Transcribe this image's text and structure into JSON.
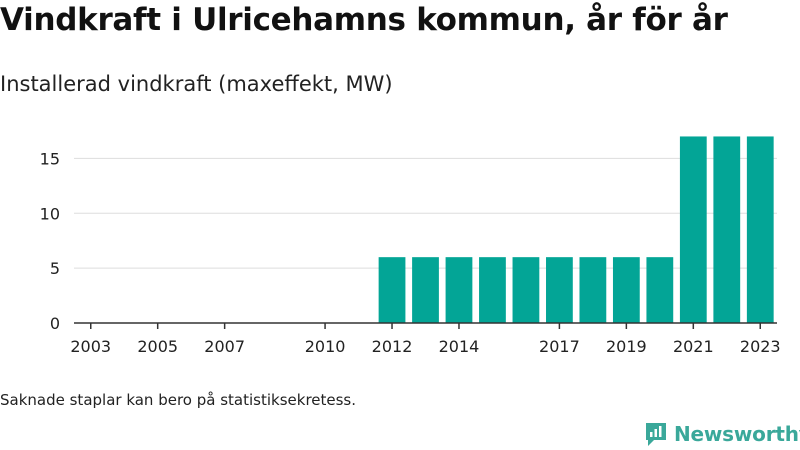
{
  "header": {
    "title": "Vindkraft i Ulricehamns kommun, år för år",
    "subtitle": "Installerad vindkraft (maxeffekt, MW)"
  },
  "footer": {
    "note": "Saknade staplar kan bero på statistiksekretess.",
    "brand": "Newsworthy"
  },
  "colors": {
    "bar": "#03a596",
    "grid": "#dddddd",
    "axis": "#333333",
    "brand": "#3aa89a"
  },
  "chart_data": {
    "type": "bar",
    "title": "Vindkraft i Ulricehamns kommun, år för år",
    "subtitle": "Installerad vindkraft (maxeffekt, MW)",
    "xlabel": "",
    "ylabel": "",
    "x": [
      2003,
      2004,
      2005,
      2006,
      2007,
      2008,
      2009,
      2010,
      2011,
      2012,
      2013,
      2014,
      2015,
      2016,
      2017,
      2018,
      2019,
      2020,
      2021,
      2022,
      2023
    ],
    "values": [
      0,
      0,
      0,
      0,
      0,
      0,
      0,
      0,
      0,
      6,
      6,
      6,
      6,
      6,
      6,
      6,
      6,
      6,
      17,
      17,
      17
    ],
    "x_ticks": [
      2003,
      2005,
      2007,
      2010,
      2012,
      2014,
      2017,
      2019,
      2021,
      2023
    ],
    "y_ticks": [
      0,
      5,
      10,
      15
    ],
    "ylim": [
      0,
      18.5
    ],
    "grid": true,
    "legend": "none"
  }
}
